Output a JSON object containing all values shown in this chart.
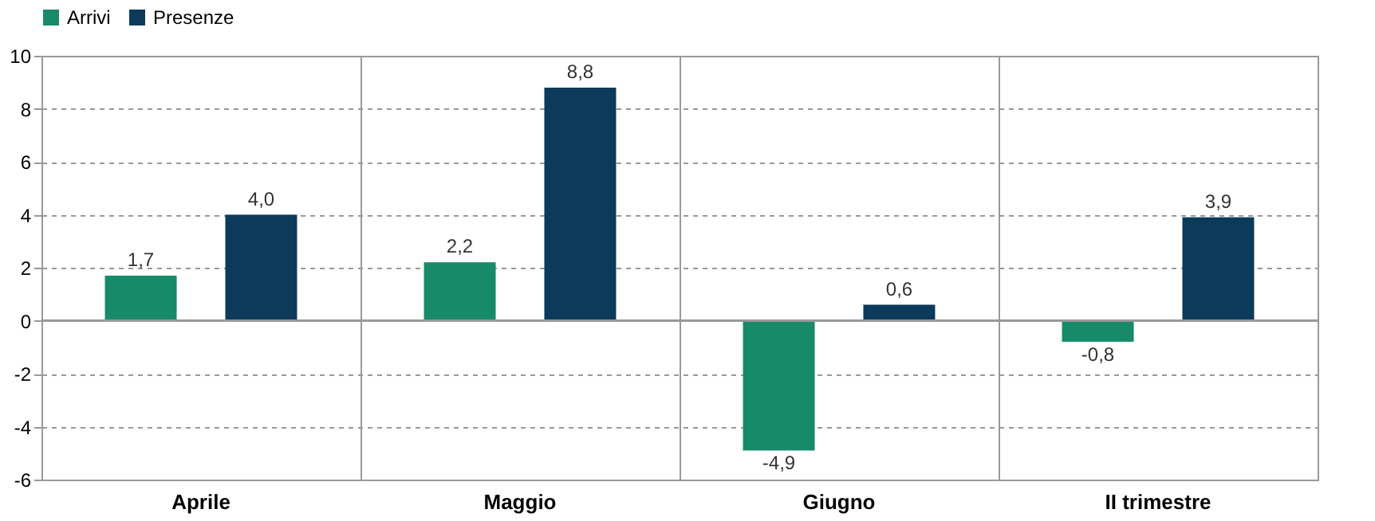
{
  "chart_data": {
    "type": "bar",
    "categories": [
      "Aprile",
      "Maggio",
      "Giugno",
      "II trimestre"
    ],
    "series": [
      {
        "name": "Arrivi",
        "color": "#178a6a",
        "values": [
          1.7,
          2.2,
          -4.9,
          -0.8
        ],
        "value_labels": [
          "1,7",
          "2,2",
          "-4,9",
          "-0,8"
        ]
      },
      {
        "name": "Presenze",
        "color": "#0b3a5b",
        "values": [
          4.0,
          8.8,
          0.6,
          3.9
        ],
        "value_labels": [
          "4,0",
          "8,8",
          "0,6",
          "3,9"
        ]
      }
    ],
    "ylim": [
      -6,
      10
    ],
    "yticks": [
      -6,
      -4,
      -2,
      0,
      2,
      4,
      6,
      8,
      10
    ],
    "ref_lines": [
      {
        "axis": "y",
        "value": 0,
        "color": "#999999"
      }
    ],
    "grid": true,
    "legend": "top"
  }
}
